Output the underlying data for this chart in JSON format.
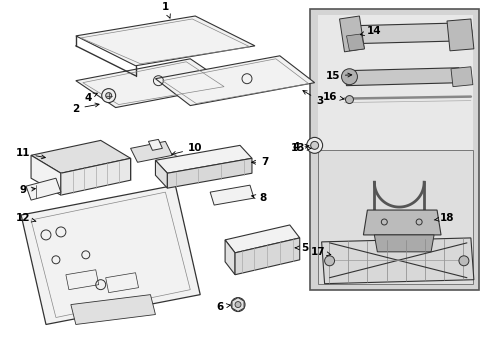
{
  "fig_width": 4.89,
  "fig_height": 3.6,
  "dpi": 100,
  "bg": "#ffffff",
  "line_color": "#333333",
  "fill_light": "#f2f2f2",
  "fill_mid": "#e0e0e0",
  "fill_gray": "#cccccc",
  "board_bg": "#d4d4d4",
  "inner_bg": "#e8e8e8"
}
